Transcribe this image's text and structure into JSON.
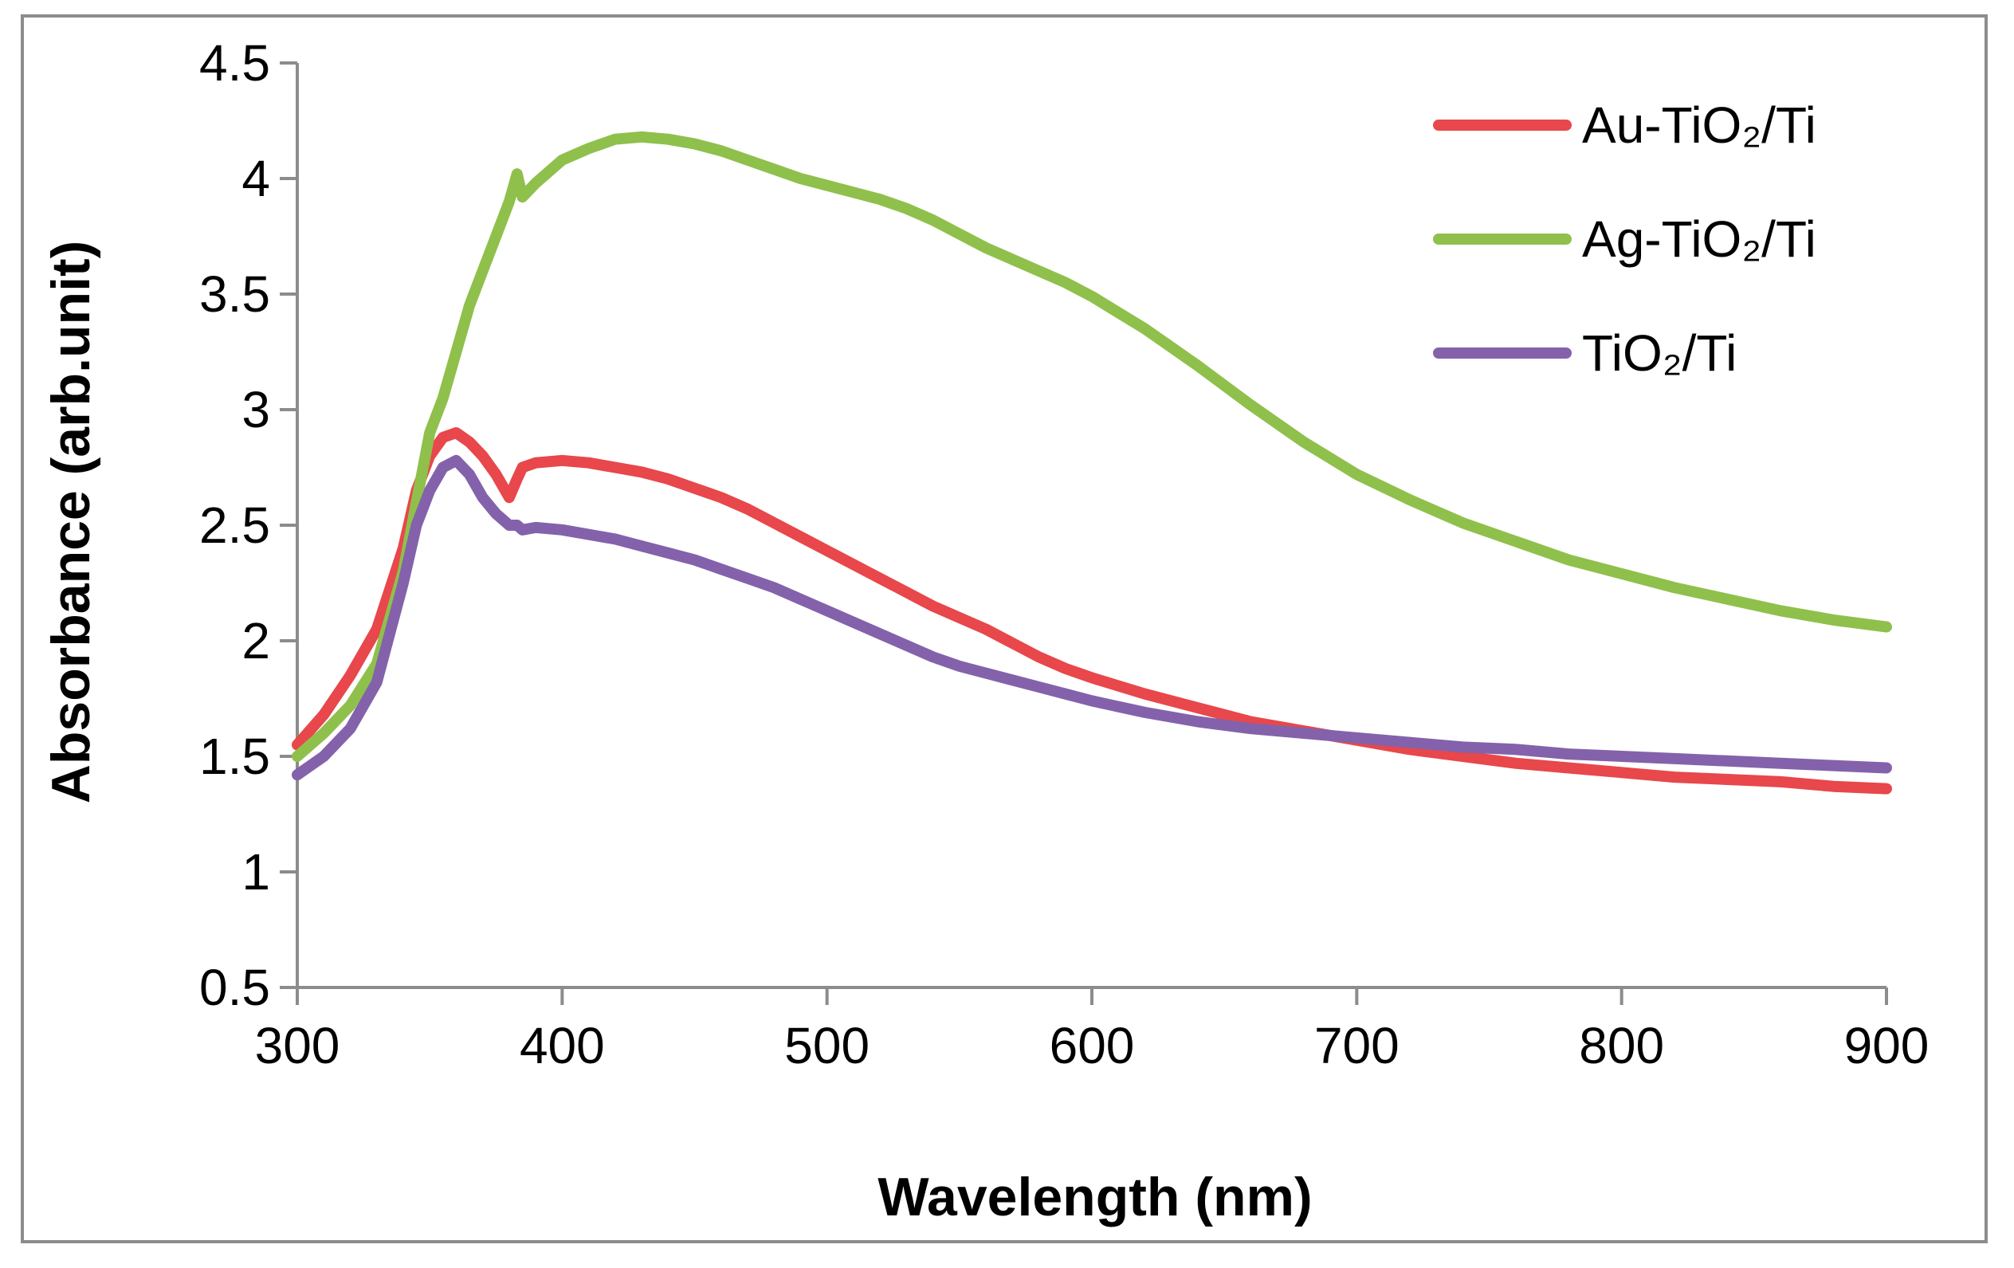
{
  "chart_data": {
    "type": "line",
    "title": "",
    "xlabel": "Wavelength (nm)",
    "ylabel": "Absorbance (arb.unit)",
    "xlim": [
      300,
      900
    ],
    "ylim": [
      0.5,
      4.5
    ],
    "xticks": [
      300,
      400,
      500,
      600,
      700,
      800,
      900
    ],
    "xtick_labels": [
      "300",
      "400",
      "500",
      "600",
      "700",
      "800",
      "900"
    ],
    "yticks": [
      0.5,
      1,
      1.5,
      2,
      2.5,
      3,
      3.5,
      4,
      4.5
    ],
    "ytick_labels": [
      "0.5",
      "1",
      "1.5",
      "2",
      "2.5",
      "3",
      "3.5",
      "4",
      "4.5"
    ],
    "grid": false,
    "legend_position": "top-right",
    "series": [
      {
        "name": "Au-TiO₂/Ti",
        "color": "#e8474b",
        "x": [
          300,
          310,
          320,
          330,
          340,
          345,
          350,
          355,
          360,
          365,
          370,
          375,
          380,
          383,
          385,
          390,
          400,
          410,
          420,
          430,
          440,
          450,
          460,
          470,
          480,
          490,
          500,
          510,
          520,
          530,
          540,
          550,
          560,
          570,
          580,
          590,
          600,
          620,
          640,
          660,
          680,
          700,
          720,
          740,
          760,
          780,
          800,
          820,
          840,
          860,
          880,
          900
        ],
        "y": [
          1.55,
          1.68,
          1.85,
          2.05,
          2.4,
          2.65,
          2.8,
          2.88,
          2.9,
          2.86,
          2.8,
          2.72,
          2.62,
          2.7,
          2.75,
          2.77,
          2.78,
          2.77,
          2.75,
          2.73,
          2.7,
          2.66,
          2.62,
          2.57,
          2.51,
          2.45,
          2.39,
          2.33,
          2.27,
          2.21,
          2.15,
          2.1,
          2.05,
          1.99,
          1.93,
          1.88,
          1.84,
          1.77,
          1.71,
          1.65,
          1.61,
          1.57,
          1.53,
          1.5,
          1.47,
          1.45,
          1.43,
          1.41,
          1.4,
          1.39,
          1.37,
          1.36
        ]
      },
      {
        "name": "Ag-TiO₂/Ti",
        "color": "#8fc04c",
        "x": [
          300,
          310,
          320,
          330,
          340,
          345,
          350,
          355,
          360,
          365,
          370,
          375,
          380,
          383,
          385,
          390,
          400,
          410,
          420,
          430,
          440,
          450,
          460,
          470,
          480,
          490,
          500,
          510,
          520,
          530,
          540,
          550,
          560,
          570,
          580,
          590,
          600,
          620,
          640,
          660,
          680,
          700,
          720,
          740,
          760,
          780,
          800,
          820,
          840,
          860,
          880,
          900
        ],
        "y": [
          1.5,
          1.6,
          1.72,
          1.9,
          2.3,
          2.6,
          2.9,
          3.05,
          3.25,
          3.45,
          3.6,
          3.75,
          3.9,
          4.02,
          3.92,
          3.98,
          4.08,
          4.13,
          4.17,
          4.18,
          4.17,
          4.15,
          4.12,
          4.08,
          4.04,
          4.0,
          3.97,
          3.94,
          3.91,
          3.87,
          3.82,
          3.76,
          3.7,
          3.65,
          3.6,
          3.55,
          3.49,
          3.35,
          3.19,
          3.02,
          2.86,
          2.72,
          2.61,
          2.51,
          2.43,
          2.35,
          2.29,
          2.23,
          2.18,
          2.13,
          2.09,
          2.06
        ]
      },
      {
        "name": "TiO₂/Ti",
        "color": "#8362ab",
        "x": [
          300,
          310,
          320,
          330,
          340,
          345,
          350,
          355,
          360,
          365,
          370,
          375,
          380,
          383,
          385,
          390,
          400,
          410,
          420,
          430,
          440,
          450,
          460,
          470,
          480,
          490,
          500,
          510,
          520,
          530,
          540,
          550,
          560,
          570,
          580,
          590,
          600,
          620,
          640,
          660,
          680,
          700,
          720,
          740,
          760,
          780,
          800,
          820,
          840,
          860,
          880,
          900
        ],
        "y": [
          1.42,
          1.5,
          1.62,
          1.82,
          2.25,
          2.5,
          2.65,
          2.75,
          2.78,
          2.72,
          2.62,
          2.55,
          2.5,
          2.5,
          2.48,
          2.49,
          2.48,
          2.46,
          2.44,
          2.41,
          2.38,
          2.35,
          2.31,
          2.27,
          2.23,
          2.18,
          2.13,
          2.08,
          2.03,
          1.98,
          1.93,
          1.89,
          1.86,
          1.83,
          1.8,
          1.77,
          1.74,
          1.69,
          1.65,
          1.62,
          1.6,
          1.58,
          1.56,
          1.54,
          1.53,
          1.51,
          1.5,
          1.49,
          1.48,
          1.47,
          1.46,
          1.45
        ]
      }
    ]
  }
}
